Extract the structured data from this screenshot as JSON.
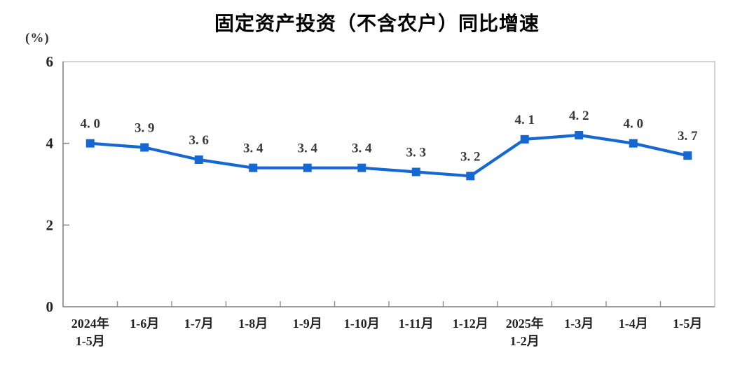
{
  "chart_data": {
    "type": "line",
    "title": "固定资产投资（不含农户）同比增速",
    "unit_label": "(%)",
    "categories": [
      "2024年\n1-5月",
      "1-6月",
      "1-7月",
      "1-8月",
      "1-9月",
      "1-10月",
      "1-11月",
      "1-12月",
      "2025年\n1-2月",
      "1-3月",
      "1-4月",
      "1-5月"
    ],
    "values": [
      4.0,
      3.9,
      3.6,
      3.4,
      3.4,
      3.4,
      3.3,
      3.2,
      4.1,
      4.2,
      4.0,
      3.7
    ],
    "point_labels": [
      "4. 0",
      "3. 9",
      "3. 6",
      "3. 4",
      "3. 4",
      "3. 4",
      "3. 3",
      "3. 2",
      "4. 1",
      "4. 2",
      "4. 0",
      "3. 7"
    ],
    "xlabel": "",
    "ylabel": "",
    "ylim": [
      0,
      6
    ],
    "yticks": [
      0,
      2,
      4,
      6
    ],
    "grid": false,
    "legend": false,
    "colors": {
      "line": "#1568d2",
      "marker": "#1568d2",
      "axis": "#8c8c8c",
      "frame": "#c9c9c9",
      "label_text": "#3a3a3a",
      "title_text": "#000000"
    }
  }
}
